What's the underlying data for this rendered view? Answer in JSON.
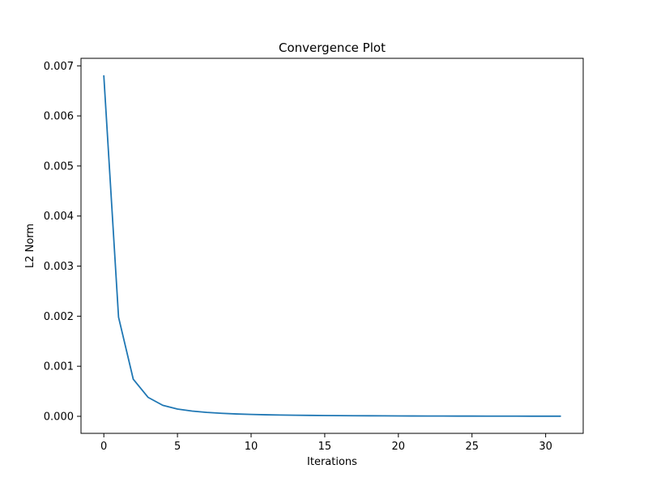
{
  "chart_data": {
    "type": "line",
    "title": "Convergence Plot",
    "xlabel": "Iterations",
    "ylabel": "L2 Norm",
    "xlim": [
      -1.55,
      32.55
    ],
    "ylim": [
      -0.00034,
      0.00715
    ],
    "x_ticks": [
      0,
      5,
      10,
      15,
      20,
      25,
      30
    ],
    "x_tick_labels": [
      "0",
      "5",
      "10",
      "15",
      "20",
      "25",
      "30"
    ],
    "y_ticks": [
      0.0,
      0.001,
      0.002,
      0.003,
      0.004,
      0.005,
      0.006,
      0.007
    ],
    "y_tick_labels": [
      "0.000",
      "0.001",
      "0.002",
      "0.003",
      "0.004",
      "0.005",
      "0.006",
      "0.007"
    ],
    "grid": false,
    "line_color": "#1f77b4",
    "series": [
      {
        "x": [
          0,
          1,
          2,
          3,
          4,
          5,
          6,
          7,
          8,
          9,
          10,
          11,
          12,
          13,
          14,
          15,
          16,
          17,
          18,
          19,
          20,
          21,
          22,
          23,
          24,
          25,
          26,
          27,
          28,
          29,
          30,
          31
        ],
        "values": [
          0.0068,
          0.00198,
          0.00074,
          0.00038,
          0.00022,
          0.000145,
          0.000105,
          7.8e-05,
          6e-05,
          4.7e-05,
          3.8e-05,
          3.1e-05,
          2.6e-05,
          2.2e-05,
          1.9e-05,
          1.6e-05,
          1.4e-05,
          1.2e-05,
          1.05e-05,
          9.2e-06,
          8e-06,
          7e-06,
          6.2e-06,
          5.5e-06,
          4.9e-06,
          4.4e-06,
          3.9e-06,
          3.5e-06,
          3.2e-06,
          2.9e-06,
          2.6e-06,
          2.4e-06
        ]
      }
    ]
  }
}
